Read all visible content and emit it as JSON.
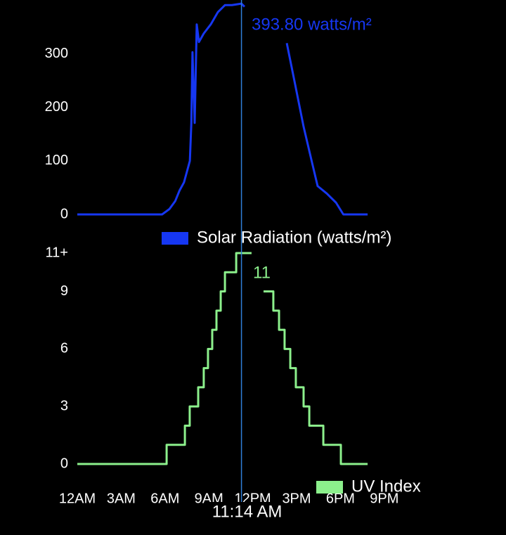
{
  "chart_data": [
    {
      "type": "line",
      "x": [
        0,
        5.8,
        6.3,
        6.7,
        7.0,
        7.3,
        7.5,
        7.7,
        7.8,
        7.88,
        8.03,
        8.17,
        8.32,
        8.65,
        9.13,
        9.62,
        10.1,
        10.58,
        11.23,
        11.44,
        12.9,
        14.33,
        14.9,
        15.48,
        16.1,
        16.44,
        17.07,
        17.7,
        18.2,
        19.86
      ],
      "series": [
        {
          "name": "Solar Radiation (watts/m²)",
          "color": "#1637f2",
          "values": [
            0,
            0,
            10,
            25,
            45,
            60,
            80,
            100,
            170,
            303,
            171,
            355,
            322,
            338,
            355,
            378,
            391,
            391,
            393.8,
            388,
            null,
            320,
            243,
            164,
            92,
            53,
            39,
            22,
            0,
            0
          ]
        }
      ],
      "xlim": [
        0,
        21
      ],
      "ylim": [
        0,
        394
      ],
      "yticks": [
        0,
        100,
        200,
        300
      ],
      "cursor_label": "393.80 watts/m²"
    },
    {
      "type": "step",
      "x": [
        0,
        6.11,
        7.36,
        7.69,
        8.27,
        8.65,
        8.94,
        9.23,
        9.52,
        9.81,
        10.1,
        10.87,
        11.92,
        12.3,
        12.74,
        13.41,
        13.8,
        14.18,
        14.57,
        14.95,
        15.48,
        15.87,
        16.83,
        18.03,
        19.86
      ],
      "series": [
        {
          "name": "UV Index",
          "color": "#8cf08c",
          "values": [
            0,
            1,
            2,
            3,
            4,
            5,
            6,
            7,
            8,
            9,
            10,
            11,
            11,
            null,
            9,
            8,
            7,
            6,
            5,
            4,
            3,
            2,
            1,
            0,
            0
          ]
        }
      ],
      "xlim": [
        0,
        21
      ],
      "xticks": [
        {
          "value": 0,
          "label": "12AM"
        },
        {
          "value": 3,
          "label": "3AM"
        },
        {
          "value": 6,
          "label": "6AM"
        },
        {
          "value": 9,
          "label": "9AM"
        },
        {
          "value": 12,
          "label": "12PM"
        },
        {
          "value": 15,
          "label": "3PM"
        },
        {
          "value": 18,
          "label": "6PM"
        },
        {
          "value": 21,
          "label": "9PM"
        }
      ],
      "ylim": [
        0,
        11
      ],
      "yticks": [
        0,
        3,
        6,
        9,
        {
          "value": 11,
          "label": "11+"
        }
      ],
      "cursor_label": "11"
    }
  ],
  "crosshair": {
    "x": 11.23,
    "label": "11:14 AM"
  }
}
